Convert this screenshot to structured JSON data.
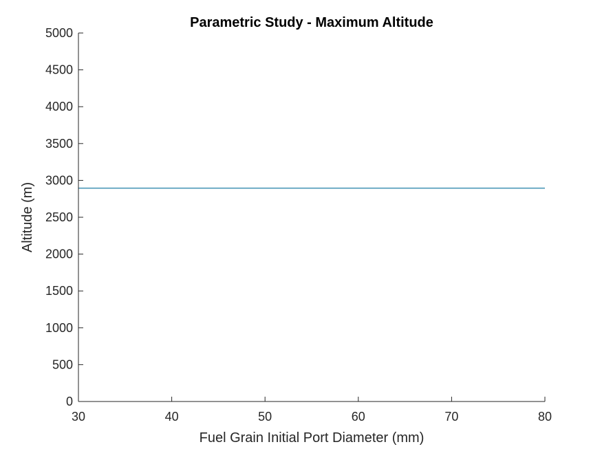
{
  "chart_data": {
    "type": "line",
    "title": "Parametric Study - Maximum Altitude",
    "xlabel": "Fuel Grain Initial Port Diameter (mm)",
    "ylabel": "Altitude (m)",
    "xlim": [
      30,
      80
    ],
    "ylim": [
      0,
      5000
    ],
    "xticks": [
      30,
      40,
      50,
      60,
      70,
      80
    ],
    "yticks": [
      0,
      500,
      1000,
      1500,
      2000,
      2500,
      3000,
      3500,
      4000,
      4500,
      5000
    ],
    "grid": false,
    "series": [
      {
        "x": [
          30,
          80
        ],
        "y": [
          2895,
          2895
        ],
        "color": "#4C98B8"
      }
    ]
  }
}
